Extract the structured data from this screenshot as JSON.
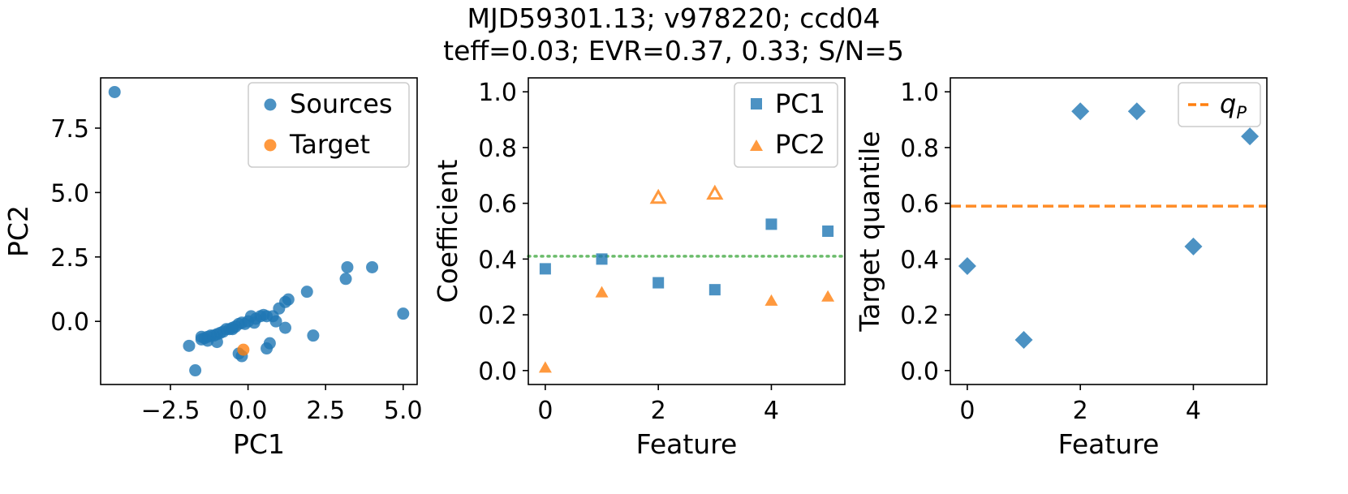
{
  "figure": {
    "title_line1": "MJD59301.13; v978220; ccd04",
    "title_line2": "teff=0.03; EVR=0.37, 0.33; S/N=5"
  },
  "colors": {
    "blue": "#1f77b4",
    "orange": "#ff7f0e",
    "green": "#2ca02c"
  },
  "chart_data": [
    {
      "type": "scatter",
      "xlabel": "PC1",
      "ylabel": "PC2",
      "xlim": [
        -4.75,
        5.45
      ],
      "ylim": [
        -2.45,
        9.45
      ],
      "xticks": [
        -2.5,
        0.0,
        2.5,
        5.0
      ],
      "xtick_labels": [
        "−2.5",
        "0.0",
        "2.5",
        "5.0"
      ],
      "yticks": [
        0.0,
        2.5,
        5.0,
        7.5
      ],
      "ytick_labels": [
        "0.0",
        "2.5",
        "5.0",
        "7.5"
      ],
      "legend_position": "top-right",
      "series": [
        {
          "name": "Sources",
          "x": [
            -4.3,
            5.0,
            4.0,
            3.2,
            3.15,
            1.9,
            1.3,
            1.2,
            1.0,
            0.8,
            0.6,
            0.4,
            0.25,
            0.1,
            0.0,
            -0.1,
            -0.2,
            -0.3,
            -0.4,
            -0.5,
            -0.6,
            -0.7,
            -0.8,
            -0.9,
            -1.0,
            -1.1,
            -1.2,
            -1.3,
            -1.4,
            -1.5,
            -1.3,
            -1.0,
            -0.5,
            0.2,
            0.5,
            0.9,
            2.1,
            1.2,
            0.7,
            0.6,
            -0.3,
            -0.2,
            -1.9,
            -1.7,
            -1.5
          ],
          "y": [
            8.9,
            0.3,
            2.1,
            2.1,
            1.65,
            1.15,
            0.85,
            0.75,
            0.5,
            0.2,
            0.2,
            0.2,
            0.1,
            0.2,
            0.0,
            -0.1,
            -0.05,
            -0.1,
            -0.2,
            -0.25,
            -0.3,
            -0.3,
            -0.4,
            -0.45,
            -0.5,
            -0.55,
            -0.55,
            -0.6,
            -0.65,
            -0.7,
            -0.75,
            -0.8,
            -0.3,
            -0.05,
            0.25,
            0.0,
            -0.55,
            -0.25,
            -0.85,
            -1.05,
            -1.25,
            -1.35,
            -0.95,
            -1.9,
            -0.6
          ]
        },
        {
          "name": "Target",
          "x": [
            -0.15
          ],
          "y": [
            -1.1
          ]
        }
      ]
    },
    {
      "type": "scatter",
      "xlabel": "Feature",
      "ylabel": "Coefficient",
      "xlim": [
        -0.3,
        5.3
      ],
      "ylim": [
        -0.05,
        1.05
      ],
      "xticks": [
        0,
        2,
        4
      ],
      "xtick_labels": [
        "0",
        "2",
        "4"
      ],
      "yticks": [
        0.0,
        0.2,
        0.4,
        0.6,
        0.8,
        1.0
      ],
      "ytick_labels": [
        "0.0",
        "0.2",
        "0.4",
        "0.6",
        "0.8",
        "1.0"
      ],
      "hline": 0.41,
      "legend_position": "top-right",
      "series": [
        {
          "name": "PC1",
          "x": [
            0,
            1,
            2,
            3,
            4,
            5
          ],
          "y": [
            0.365,
            0.4,
            0.315,
            0.29,
            0.525,
            0.5
          ],
          "hollow": [
            false,
            false,
            false,
            false,
            false,
            false
          ]
        },
        {
          "name": "PC2",
          "x": [
            0,
            1,
            2,
            3,
            4,
            5
          ],
          "y": [
            0.01,
            0.28,
            0.62,
            0.635,
            0.25,
            0.265
          ],
          "hollow": [
            false,
            false,
            true,
            true,
            false,
            false
          ]
        }
      ]
    },
    {
      "type": "scatter",
      "xlabel": "Feature",
      "ylabel": "Target quantile",
      "xlim": [
        -0.3,
        5.3
      ],
      "ylim": [
        -0.05,
        1.05
      ],
      "xticks": [
        0,
        2,
        4
      ],
      "xtick_labels": [
        "0",
        "2",
        "4"
      ],
      "yticks": [
        0.0,
        0.2,
        0.4,
        0.6,
        0.8,
        1.0
      ],
      "ytick_labels": [
        "0.0",
        "0.2",
        "0.4",
        "0.6",
        "0.8",
        "1.0"
      ],
      "hline": 0.59,
      "hline_label": "q",
      "hline_label_sub": "P",
      "legend_position": "top-right",
      "series": [
        {
          "name": "Target quantile",
          "x": [
            0,
            1,
            2,
            3,
            4,
            5
          ],
          "y": [
            0.375,
            0.11,
            0.93,
            0.93,
            0.445,
            0.84
          ]
        }
      ]
    }
  ]
}
